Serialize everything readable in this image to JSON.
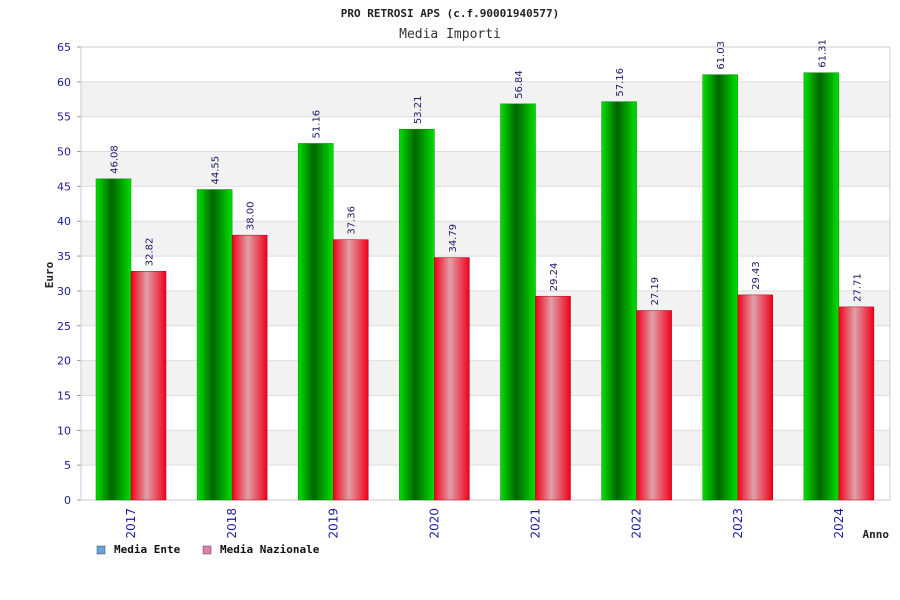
{
  "chart_data": {
    "type": "bar",
    "title": "PRO RETROSI APS (c.f.90001940577)",
    "subtitle": "Media Importi",
    "xlabel": "Anno",
    "ylabel": "Euro",
    "categories": [
      "2017",
      "2018",
      "2019",
      "2020",
      "2021",
      "2022",
      "2023",
      "2024"
    ],
    "series": [
      {
        "name": "Media Ente",
        "values": [
          46.08,
          44.55,
          51.16,
          53.21,
          56.84,
          57.16,
          61.03,
          61.31
        ],
        "labels": [
          "46.08",
          "44.55",
          "51.16",
          "53.21",
          "56.84",
          "57.16",
          "61.03",
          "61.31"
        ]
      },
      {
        "name": "Media Nazionale",
        "values": [
          32.82,
          38.0,
          37.36,
          34.79,
          29.24,
          27.19,
          29.43,
          27.71
        ],
        "labels": [
          "32.82",
          "38.00",
          "37.36",
          "34.79",
          "29.24",
          "27.19",
          "29.43",
          "27.71"
        ]
      }
    ],
    "ylim": [
      0,
      65
    ],
    "yticks": [
      0,
      5,
      10,
      15,
      20,
      25,
      30,
      35,
      40,
      45,
      50,
      55,
      60,
      65
    ],
    "grid": true,
    "legend_position": "bottom-left",
    "colors": {
      "series": [
        "#00c000",
        "#e8102a"
      ],
      "legend": [
        "#66a3e0",
        "#e07fb0"
      ],
      "band": "#f2f2f2",
      "tick_text": "#1a1aa0"
    }
  }
}
